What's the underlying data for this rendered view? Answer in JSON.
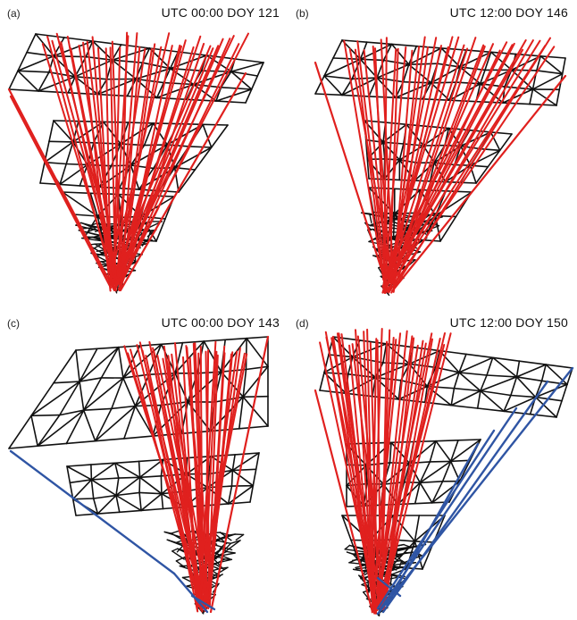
{
  "panels": [
    {
      "label": "(a)",
      "title": "UTC 00:00 DOY 121"
    },
    {
      "label": "(b)",
      "title": "UTC 12:00 DOY 146"
    },
    {
      "label": "(c)",
      "title": "UTC 00:00 DOY 143"
    },
    {
      "label": "(d)",
      "title": "UTC 12:00 DOY 150"
    }
  ],
  "colors": {
    "mesh": "#111111",
    "ray": "#e0201e",
    "boundary_ray": "#2f55a4"
  }
}
